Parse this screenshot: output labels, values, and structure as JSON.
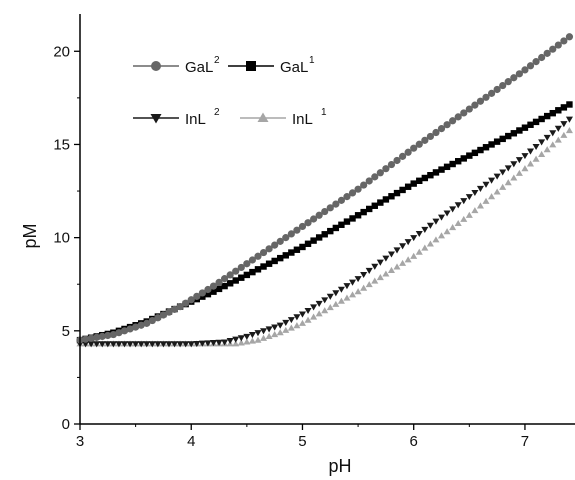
{
  "chart_data": {
    "type": "scatter",
    "xlabel": "pH",
    "ylabel": "pM",
    "xlim": [
      3,
      7.45
    ],
    "ylim": [
      0,
      22
    ],
    "xticks": [
      3,
      4,
      5,
      6,
      7
    ],
    "yticks": [
      0,
      5,
      10,
      15,
      20
    ],
    "grid": false,
    "legend_position": "top-left",
    "series": [
      {
        "name_main": "GaL",
        "name_sup": "2",
        "marker": "circle",
        "color": "#666666",
        "x": [
          3.0,
          3.3,
          3.6,
          3.9,
          4.2,
          4.5,
          5.0,
          5.5,
          6.0,
          6.5,
          7.0,
          7.45
        ],
        "y": [
          4.5,
          4.8,
          5.4,
          6.3,
          7.4,
          8.6,
          10.6,
          12.6,
          14.8,
          16.9,
          19.0,
          21.0
        ]
      },
      {
        "name_main": "GaL",
        "name_sup": "1",
        "marker": "square",
        "color": "#000000",
        "x": [
          3.0,
          3.3,
          3.6,
          3.9,
          4.2,
          4.5,
          5.0,
          5.5,
          6.0,
          6.5,
          7.0,
          7.45
        ],
        "y": [
          4.5,
          4.9,
          5.5,
          6.3,
          7.1,
          8.0,
          9.5,
          11.2,
          12.9,
          14.4,
          15.9,
          17.3
        ]
      },
      {
        "name_main": "InL",
        "name_sup": "2",
        "marker": "triangle-down",
        "color": "#1a1a1a",
        "x": [
          3.0,
          3.5,
          4.0,
          4.3,
          4.5,
          4.8,
          5.0,
          5.5,
          6.0,
          6.5,
          7.0,
          7.45
        ],
        "y": [
          4.3,
          4.3,
          4.3,
          4.4,
          4.7,
          5.3,
          5.9,
          7.8,
          10.0,
          12.2,
          14.4,
          16.6
        ]
      },
      {
        "name_main": "InL",
        "name_sup": "1",
        "marker": "triangle-up",
        "color": "#a6a6a6",
        "x": [
          3.0,
          3.5,
          4.0,
          4.4,
          4.6,
          4.8,
          5.0,
          5.5,
          6.0,
          6.5,
          7.0,
          7.45
        ],
        "y": [
          4.3,
          4.3,
          4.3,
          4.3,
          4.5,
          4.9,
          5.4,
          7.1,
          9.0,
          11.2,
          13.7,
          16.0
        ]
      }
    ]
  }
}
